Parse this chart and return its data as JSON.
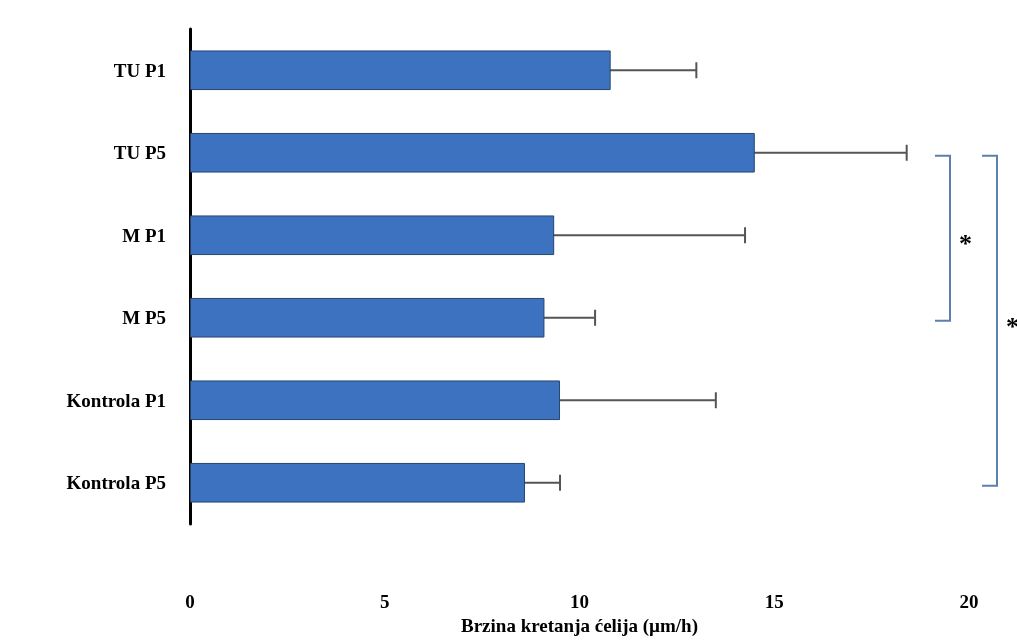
{
  "chart_data": {
    "type": "bar",
    "orientation": "horizontal",
    "xlabel": "Brzina kretanja ćelija (µm/h)",
    "categories": [
      "TU P1",
      "TU P5",
      "M P1",
      "M P5",
      "Kontrola P1",
      "Kontrola P5"
    ],
    "values": [
      10.8,
      14.5,
      9.35,
      9.1,
      9.5,
      8.6
    ],
    "errors": [
      2.2,
      3.9,
      4.9,
      1.3,
      4.0,
      0.9
    ],
    "color": "#3d72c0",
    "xlim": [
      0,
      20
    ],
    "xticks": [
      0,
      5,
      10,
      15,
      20
    ],
    "grid": false,
    "annotations": [
      "*",
      "*"
    ]
  }
}
